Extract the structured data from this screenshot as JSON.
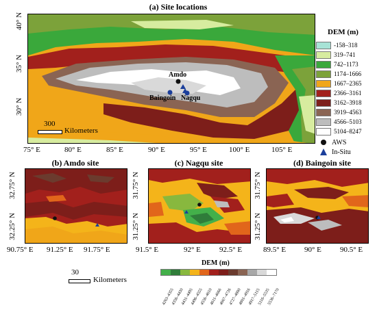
{
  "main": {
    "title": "(a) Site locations",
    "x_ticks": [
      "75° E",
      "80° E",
      "85° E",
      "90° E",
      "95° E",
      "100° E",
      "105° E"
    ],
    "y_ticks": [
      "40° N",
      "35° N",
      "30° N"
    ],
    "labels": {
      "amdo": "Amdo",
      "baingoin": "Baingoin",
      "nagqu": "Nagqu"
    },
    "scale_value": "300",
    "scale_unit": "Kilometers"
  },
  "legend": {
    "title": "DEM (m)",
    "items": [
      {
        "label": "-158–318",
        "color": "#a7e3d6"
      },
      {
        "label": "319–741",
        "color": "#d7ec9f"
      },
      {
        "label": "742–1173",
        "color": "#3aa83b"
      },
      {
        "label": "1174–1666",
        "color": "#7ca23a"
      },
      {
        "label": "1667–2365",
        "color": "#f0a619"
      },
      {
        "label": "2366–3161",
        "color": "#a2201c"
      },
      {
        "label": "3162–3918",
        "color": "#7d1e1a"
      },
      {
        "label": "3919–4563",
        "color": "#8a6453"
      },
      {
        "label": "4566–5103",
        "color": "#bdbdbd"
      },
      {
        "label": "5104–8247",
        "color": "#ffffff"
      }
    ],
    "aws_label": "AWS",
    "insitu_label": "In-Situ"
  },
  "panel_b": {
    "title": "(b) Amdo site",
    "x_ticks": [
      "90.75° E",
      "91.25° E",
      "91.75° E"
    ],
    "y_ticks": [
      "32.75° N",
      "32.25° N"
    ]
  },
  "panel_c": {
    "title": "(c) Nagqu site",
    "x_ticks": [
      "91.5° E",
      "92° E",
      "92.5° E"
    ],
    "y_ticks": [
      "31.75° N",
      "31.25° N"
    ]
  },
  "panel_d": {
    "title": "(d) Baingoin site",
    "x_ticks": [
      "89.5° E",
      "90° E",
      "90.5° E"
    ],
    "y_ticks": [
      "31.75° N",
      "31.25° N"
    ]
  },
  "bottom": {
    "title": "DEM (m)",
    "scale_value": "30",
    "scale_unit": "Kilometers",
    "items": [
      {
        "label": "4263–4355",
        "color": "#43b04a"
      },
      {
        "label": "4356–4430",
        "color": "#2f7d3a"
      },
      {
        "label": "4431–4495",
        "color": "#88b83e"
      },
      {
        "label": "4496–4555",
        "color": "#f4b41a"
      },
      {
        "label": "4556–4610",
        "color": "#e1661b"
      },
      {
        "label": "4611–4666",
        "color": "#a2201c"
      },
      {
        "label": "4667–4726",
        "color": "#7d1e1a"
      },
      {
        "label": "4727–4800",
        "color": "#6b3b2e"
      },
      {
        "label": "4801–4916",
        "color": "#8a6453"
      },
      {
        "label": "4917–5115",
        "color": "#a8a8a8"
      },
      {
        "label": "5116–5535",
        "color": "#d9d9d9"
      },
      {
        "label": "5536–7170",
        "color": "#ffffff"
      }
    ]
  }
}
